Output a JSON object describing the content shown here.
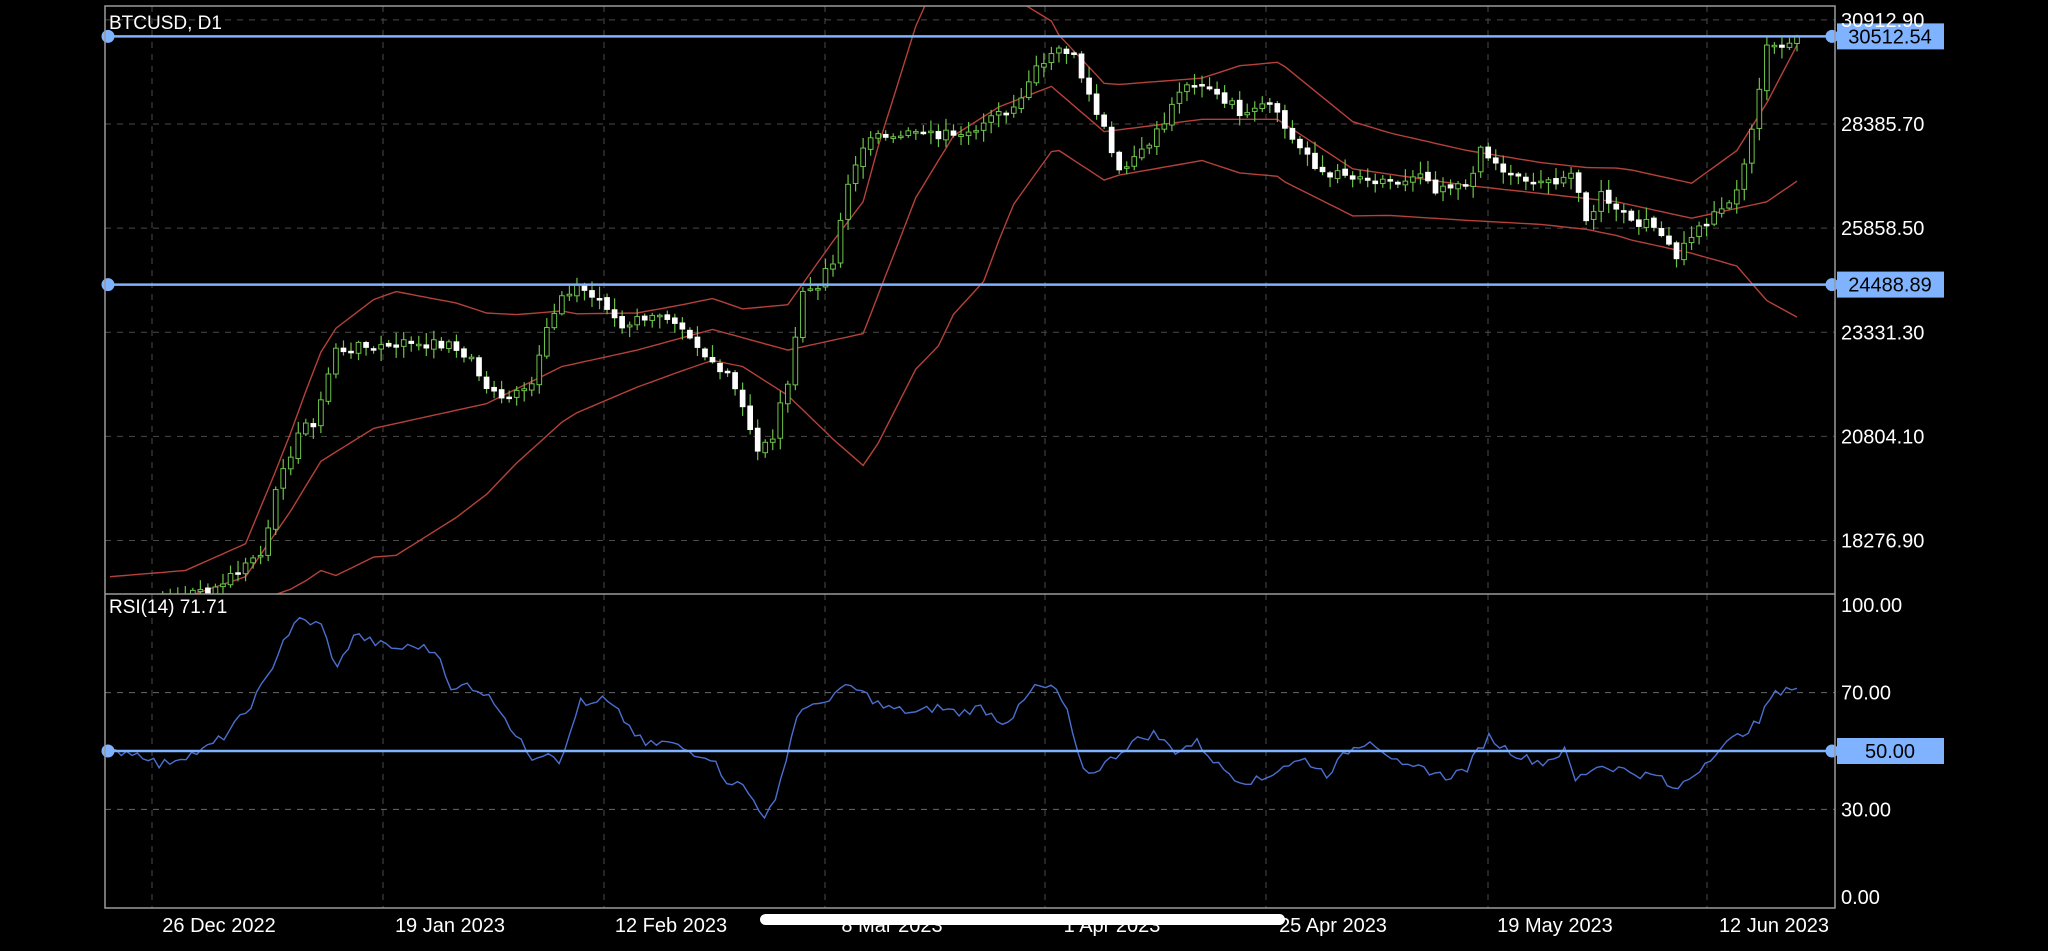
{
  "chart_data": {
    "type": "candlestick",
    "symbol_label": "BTCUSD, D1",
    "price_axis_ticks": [
      "30912.90",
      "28385.70",
      "25858.50",
      "23331.30",
      "20804.10",
      "18276.90"
    ],
    "price_axis_values": [
      30912.9,
      28385.7,
      25858.5,
      23331.3,
      20804.1,
      18276.9
    ],
    "price_range": [
      16980,
      31250
    ],
    "time_axis_labels": [
      "26 Dec 2022",
      "19 Jan 2023",
      "12 Feb 2023",
      "8 Mar 2023",
      "1 Apr 2023",
      "25 Apr 2023",
      "19 May 2023",
      "12 Jun 2023"
    ],
    "horizontal_lines": [
      {
        "value": 30512.54,
        "label": "30512.54"
      },
      {
        "value": 24488.89,
        "label": "24488.89"
      }
    ],
    "close_anchors": [
      [
        0,
        16700
      ],
      [
        8,
        16840
      ],
      [
        14,
        17150
      ],
      [
        20,
        18000
      ],
      [
        22,
        19400
      ],
      [
        25,
        20900
      ],
      [
        27,
        21120
      ],
      [
        30,
        22900
      ],
      [
        40,
        23100
      ],
      [
        45,
        23000
      ],
      [
        48,
        22700
      ],
      [
        50,
        21900
      ],
      [
        53,
        21800
      ],
      [
        56,
        22200
      ],
      [
        58,
        23400
      ],
      [
        60,
        24100
      ],
      [
        62,
        24500
      ],
      [
        66,
        23900
      ],
      [
        68,
        23500
      ],
      [
        72,
        23800
      ],
      [
        76,
        23300
      ],
      [
        79,
        22700
      ],
      [
        82,
        22400
      ],
      [
        84,
        21600
      ],
      [
        86,
        20400
      ],
      [
        88,
        20800
      ],
      [
        90,
        22200
      ],
      [
        92,
        24300
      ],
      [
        94,
        24500
      ],
      [
        96,
        25000
      ],
      [
        98,
        26900
      ],
      [
        100,
        27900
      ],
      [
        104,
        28200
      ],
      [
        110,
        28100
      ],
      [
        116,
        28400
      ],
      [
        120,
        28800
      ],
      [
        123,
        29800
      ],
      [
        126,
        30300
      ],
      [
        128,
        30000
      ],
      [
        130,
        29200
      ],
      [
        132,
        28300
      ],
      [
        134,
        27300
      ],
      [
        136,
        27600
      ],
      [
        138,
        28000
      ],
      [
        140,
        28400
      ],
      [
        142,
        29200
      ],
      [
        146,
        29300
      ],
      [
        150,
        28700
      ],
      [
        154,
        29000
      ],
      [
        156,
        28300
      ],
      [
        158,
        27800
      ],
      [
        160,
        27300
      ],
      [
        166,
        27000
      ],
      [
        170,
        26900
      ],
      [
        174,
        27100
      ],
      [
        176,
        26700
      ],
      [
        178,
        26800
      ],
      [
        180,
        26900
      ],
      [
        182,
        27700
      ],
      [
        186,
        27100
      ],
      [
        190,
        26900
      ],
      [
        194,
        27200
      ],
      [
        196,
        26000
      ],
      [
        198,
        26700
      ],
      [
        200,
        26400
      ],
      [
        202,
        26100
      ],
      [
        206,
        25800
      ],
      [
        208,
        25200
      ],
      [
        210,
        25700
      ],
      [
        214,
        26300
      ],
      [
        216,
        26700
      ],
      [
        218,
        28300
      ],
      [
        220,
        30200
      ],
      [
        224,
        30512
      ]
    ],
    "bands_anchor_price": [
      [
        0,
        16700
      ],
      [
        10,
        16900
      ],
      [
        18,
        17400
      ],
      [
        24,
        19000
      ],
      [
        28,
        20200
      ],
      [
        35,
        21000
      ],
      [
        50,
        21600
      ],
      [
        60,
        22500
      ],
      [
        70,
        22900
      ],
      [
        80,
        23400
      ],
      [
        90,
        22900
      ],
      [
        100,
        23300
      ],
      [
        107,
        26600
      ],
      [
        112,
        28100
      ],
      [
        118,
        28800
      ],
      [
        125,
        29300
      ],
      [
        132,
        28200
      ],
      [
        145,
        28500
      ],
      [
        155,
        28500
      ],
      [
        165,
        27300
      ],
      [
        180,
        26900
      ],
      [
        190,
        26700
      ],
      [
        200,
        26500
      ],
      [
        210,
        26100
      ],
      [
        220,
        26500
      ],
      [
        224,
        27000
      ]
    ],
    "bands_anchor_width": [
      [
        0,
        700
      ],
      [
        10,
        650
      ],
      [
        18,
        800
      ],
      [
        22,
        1500
      ],
      [
        26,
        2300
      ],
      [
        30,
        3000
      ],
      [
        38,
        3200
      ],
      [
        46,
        2600
      ],
      [
        54,
        1800
      ],
      [
        62,
        1200
      ],
      [
        70,
        900
      ],
      [
        76,
        800
      ],
      [
        84,
        700
      ],
      [
        90,
        1100
      ],
      [
        96,
        2400
      ],
      [
        102,
        3600
      ],
      [
        110,
        4500
      ],
      [
        116,
        4000
      ],
      [
        120,
        2500
      ],
      [
        126,
        1400
      ],
      [
        134,
        1100
      ],
      [
        145,
        1000
      ],
      [
        150,
        1300
      ],
      [
        156,
        1400
      ],
      [
        170,
        1000
      ],
      [
        180,
        850
      ],
      [
        190,
        750
      ],
      [
        196,
        750
      ],
      [
        202,
        850
      ],
      [
        210,
        850
      ],
      [
        216,
        1400
      ],
      [
        220,
        2400
      ],
      [
        224,
        3300
      ]
    ],
    "rsi": {
      "label": "RSI(14) 71.71",
      "ticks": [
        "100.00",
        "70.00",
        "30.00",
        "0.00"
      ],
      "tick_values": [
        100,
        70,
        30,
        0
      ],
      "range": [
        0,
        100
      ],
      "level_lines": [
        70,
        30
      ],
      "highlight_line": {
        "value": 50,
        "label": "50.00"
      },
      "anchors": [
        [
          0,
          49
        ],
        [
          4,
          50
        ],
        [
          8,
          48
        ],
        [
          10,
          45
        ],
        [
          14,
          48
        ],
        [
          18,
          50
        ],
        [
          22,
          55
        ],
        [
          26,
          63
        ],
        [
          30,
          75
        ],
        [
          33,
          88
        ],
        [
          36,
          95
        ],
        [
          40,
          93
        ],
        [
          43,
          78
        ],
        [
          46,
          90
        ],
        [
          50,
          87
        ],
        [
          54,
          85
        ],
        [
          58,
          86
        ],
        [
          62,
          83
        ],
        [
          64,
          70
        ],
        [
          67,
          73
        ],
        [
          70,
          70
        ],
        [
          73,
          65
        ],
        [
          76,
          55
        ],
        [
          79,
          48
        ],
        [
          82,
          50
        ],
        [
          84,
          47
        ],
        [
          86,
          55
        ],
        [
          88,
          68
        ],
        [
          90,
          65
        ],
        [
          92,
          68
        ],
        [
          95,
          63
        ],
        [
          98,
          56
        ],
        [
          100,
          52
        ],
        [
          104,
          53
        ],
        [
          108,
          50
        ],
        [
          112,
          48
        ],
        [
          115,
          40
        ],
        [
          118,
          38
        ],
        [
          120,
          33
        ],
        [
          122,
          28
        ],
        [
          124,
          32
        ],
        [
          126,
          48
        ],
        [
          128,
          62
        ],
        [
          130,
          66
        ],
        [
          132,
          65
        ],
        [
          135,
          70
        ],
        [
          138,
          72
        ],
        [
          141,
          69
        ],
        [
          144,
          65
        ],
        [
          147,
          64
        ],
        [
          150,
          63
        ],
        [
          154,
          65
        ],
        [
          158,
          63
        ],
        [
          162,
          65
        ],
        [
          166,
          60
        ],
        [
          168,
          62
        ],
        [
          172,
          72
        ],
        [
          176,
          71
        ],
        [
          178,
          63
        ],
        [
          180,
          48
        ],
        [
          182,
          42
        ],
        [
          186,
          47
        ],
        [
          190,
          53
        ],
        [
          194,
          56
        ],
        [
          198,
          50
        ],
        [
          202,
          53
        ],
        [
          206,
          45
        ],
        [
          210,
          40
        ],
        [
          214,
          40
        ],
        [
          218,
          45
        ],
        [
          222,
          47
        ],
        [
          226,
          42
        ],
        [
          230,
          50
        ],
        [
          234,
          54
        ],
        [
          238,
          48
        ],
        [
          240,
          44
        ],
        [
          244,
          44
        ],
        [
          248,
          41
        ],
        [
          252,
          44
        ],
        [
          254,
          50
        ],
        [
          256,
          55
        ],
        [
          258,
          52
        ],
        [
          262,
          48
        ],
        [
          266,
          46
        ],
        [
          270,
          50
        ],
        [
          272,
          40
        ],
        [
          276,
          45
        ],
        [
          280,
          44
        ],
        [
          284,
          42
        ],
        [
          288,
          41
        ],
        [
          290,
          36
        ],
        [
          294,
          42
        ],
        [
          298,
          50
        ],
        [
          302,
          55
        ],
        [
          306,
          60
        ],
        [
          308,
          68
        ],
        [
          311,
          72
        ],
        [
          313,
          71
        ]
      ]
    }
  }
}
